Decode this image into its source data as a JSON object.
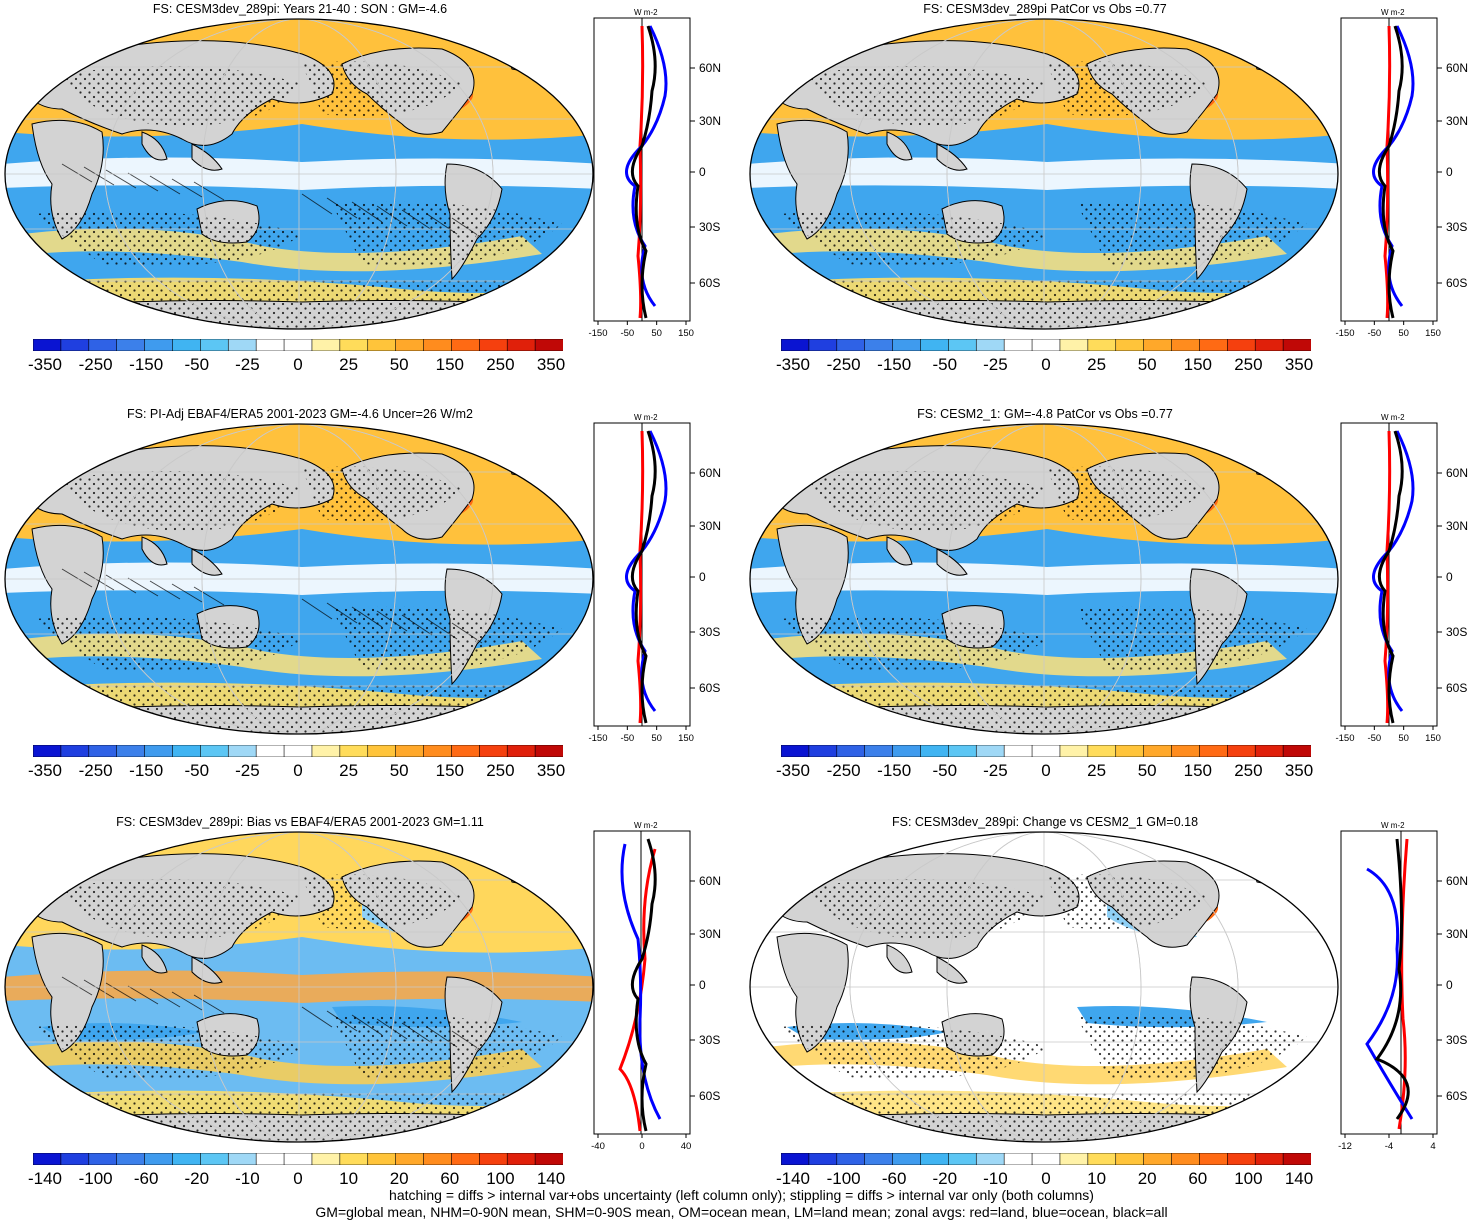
{
  "panels": [
    {
      "title": "FS: CESM3dev_289pi: Years 21-40 : SON : GM=-4.6",
      "cb_labels": [
        "-350",
        "-250",
        "-150",
        "-50",
        "-25",
        "0",
        "25",
        "50",
        "150",
        "250",
        "350"
      ],
      "zonal_ticks": [
        "-150",
        "-50",
        "50",
        "150"
      ],
      "style": "model"
    },
    {
      "title": "FS: CESM3dev_289pi PatCor vs Obs =0.77",
      "cb_labels": [
        "-350",
        "-250",
        "-150",
        "-50",
        "-25",
        "0",
        "25",
        "50",
        "150",
        "250",
        "350"
      ],
      "zonal_ticks": [
        "-150",
        "-50",
        "50",
        "150"
      ],
      "style": "model"
    },
    {
      "title": "FS: PI-Adj EBAF4/ERA5 2001-2023 GM=-4.6 Uncer=26 W/m2",
      "cb_labels": [
        "-350",
        "-250",
        "-150",
        "-50",
        "-25",
        "0",
        "25",
        "50",
        "150",
        "250",
        "350"
      ],
      "zonal_ticks": [
        "-150",
        "-50",
        "50",
        "150"
      ],
      "style": "obs"
    },
    {
      "title": "FS: CESM2_1: GM=-4.8 PatCor vs Obs =0.77",
      "cb_labels": [
        "-350",
        "-250",
        "-150",
        "-50",
        "-25",
        "0",
        "25",
        "50",
        "150",
        "250",
        "350"
      ],
      "zonal_ticks": [
        "-150",
        "-50",
        "50",
        "150"
      ],
      "style": "model"
    },
    {
      "title": "FS: CESM3dev_289pi: Bias vs EBAF4/ERA5 2001-2023  GM=1.11",
      "cb_labels": [
        "-140",
        "-100",
        "-60",
        "-20",
        "-10",
        "0",
        "10",
        "20",
        "60",
        "100",
        "140"
      ],
      "zonal_ticks": [
        "-40",
        "0",
        "40"
      ],
      "style": "bias"
    },
    {
      "title": "FS: CESM3dev_289pi: Change vs CESM2_1 GM=0.18",
      "cb_labels": [
        "-140",
        "-100",
        "-60",
        "-20",
        "-10",
        "0",
        "10",
        "20",
        "60",
        "100",
        "140"
      ],
      "zonal_ticks": [
        "-12",
        "-4",
        "4"
      ],
      "style": "change"
    }
  ],
  "lat_labels": [
    "60N",
    "30N",
    "0",
    "30S",
    "60S"
  ],
  "units": "W m-2",
  "palette": [
    "#0a14d2",
    "#1f3fe0",
    "#2f62e6",
    "#3c80ea",
    "#3f9bee",
    "#40b4f2",
    "#5cc6f4",
    "#9fd8f6",
    "#ffffff",
    "#ffffff",
    "#fff2a8",
    "#ffdc5a",
    "#ffc43a",
    "#ffa82a",
    "#ff8c1e",
    "#ff6a14",
    "#f5400e",
    "#e0200a",
    "#c00806"
  ],
  "colors": {
    "land": "#d3d3d3",
    "ocean_neg": "#3fa6ee",
    "ocean_pos": "#ffc13c",
    "zonal_land": "#ff0000",
    "zonal_ocean": "#0000ff",
    "zonal_all": "#000000"
  },
  "footer": [
    "hatching = diffs > internal var+obs uncertainty (left column only); stippling = diffs > internal var only (both columns)",
    "GM=global mean, NHM=0-90N mean, SHM=0-90S mean, OM=ocean mean, LM=land mean; zonal avgs: red=land, blue=ocean, black=all"
  ]
}
